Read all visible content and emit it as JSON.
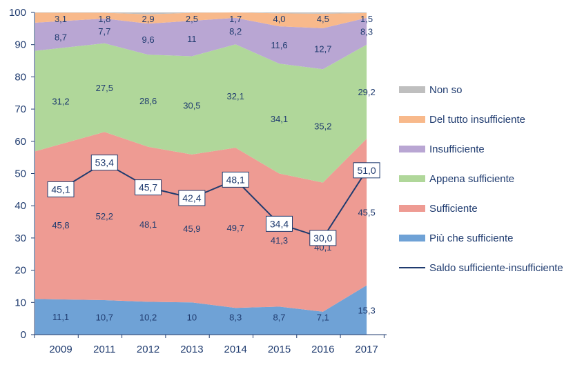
{
  "chart_data": {
    "type": "area",
    "stacked": true,
    "categories": [
      "2009",
      "2011",
      "2012",
      "2013",
      "2014",
      "2015",
      "2016",
      "2017"
    ],
    "ylim": [
      0,
      100
    ],
    "y_ticks": [
      "0",
      "10",
      "20",
      "30",
      "40",
      "50",
      "60",
      "70",
      "80",
      "90",
      "100"
    ],
    "grid": false,
    "legend_position": "right",
    "series": [
      {
        "name": "Più che sufficiente",
        "color": "#6fa2d6",
        "values": [
          11.1,
          10.7,
          10.2,
          10,
          8.3,
          8.7,
          7.1,
          15.3
        ],
        "labels": [
          "11,1",
          "10,7",
          "10,2",
          "10",
          "8,3",
          "8,7",
          "7,1",
          "15,3"
        ]
      },
      {
        "name": "Sufficiente",
        "color": "#ee9b93",
        "values": [
          45.8,
          52.2,
          48.1,
          45.9,
          49.7,
          41.3,
          40.1,
          45.5
        ],
        "labels": [
          "45,8",
          "52,2",
          "48,1",
          "45,9",
          "49,7",
          "41,3",
          "40,1",
          "45,5"
        ]
      },
      {
        "name": "Appena sufficiente",
        "color": "#b0d79a",
        "values": [
          31.2,
          27.5,
          28.6,
          30.5,
          32.1,
          34.1,
          35.2,
          29.2
        ],
        "labels": [
          "31,2",
          "27,5",
          "28,6",
          "30,5",
          "32,1",
          "34,1",
          "35,2",
          "29,2"
        ]
      },
      {
        "name": "Insufficiente",
        "color": "#b9a6d3",
        "values": [
          8.7,
          7.7,
          9.6,
          11,
          8.2,
          11.6,
          12.7,
          8.3
        ],
        "labels": [
          "8,7",
          "7,7",
          "9,6",
          "11",
          "8,2",
          "11,6",
          "12,7",
          "8,3"
        ]
      },
      {
        "name": "Del tutto insufficiente",
        "color": "#f8b98b",
        "values": [
          3.1,
          1.8,
          2.9,
          2.5,
          1.7,
          4.0,
          4.5,
          1.5
        ],
        "labels": [
          "3,1",
          "1,8",
          "2,9",
          "2,5",
          "1,7",
          "4,0",
          "4,5",
          "1,5"
        ]
      },
      {
        "name": "Non so",
        "color": "#bfbfbf",
        "values": [
          0.1,
          0.1,
          0.6,
          0.1,
          0.0,
          0.3,
          0.4,
          0.2
        ]
      }
    ],
    "line": {
      "name": "Saldo sufficiente-insufficiente",
      "color": "#1f3b6f",
      "values": [
        45.1,
        53.4,
        45.7,
        42.4,
        48.1,
        34.4,
        30.0,
        51.0
      ],
      "labels": [
        "45,1",
        "53,4",
        "45,7",
        "42,4",
        "48,1",
        "34,4",
        "30,0",
        "51,0"
      ]
    },
    "legend_order": [
      "Non so",
      "Del tutto insufficiente",
      "Insufficiente",
      "Appena sufficiente",
      "Sufficiente",
      "Più che sufficiente",
      "Saldo sufficiente-insufficiente"
    ]
  }
}
